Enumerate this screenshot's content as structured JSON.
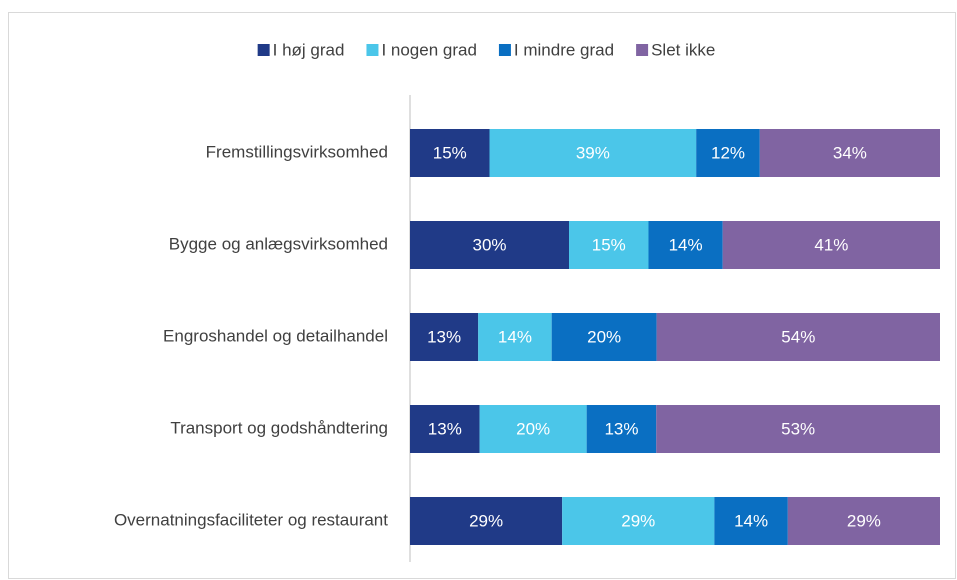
{
  "chart_data": {
    "type": "stacked-bar-horizontal",
    "categories": [
      "Fremstillingsvirksomhed",
      "Bygge og anlægsvirksomhed",
      "Engroshandel og detailhandel",
      "Transport og godshåndtering",
      "Overnatningsfaciliteter og restaurant"
    ],
    "series": [
      {
        "name": "I høj grad",
        "color": "#203a87",
        "values": [
          15,
          30,
          13,
          13,
          29
        ],
        "value_labels": [
          "15%",
          "30%",
          "13%",
          "13%",
          "29%"
        ]
      },
      {
        "name": "I nogen grad",
        "color": "#4bc6e9",
        "values": [
          39,
          15,
          14,
          20,
          29
        ],
        "value_labels": [
          "39%",
          "15%",
          "14%",
          "20%",
          "29%"
        ]
      },
      {
        "name": "I mindre grad",
        "color": "#0a6fc2",
        "values": [
          12,
          14,
          20,
          13,
          14
        ],
        "value_labels": [
          "12%",
          "14%",
          "20%",
          "13%",
          "14%"
        ]
      },
      {
        "name": "Slet ikke",
        "color": "#8064a2",
        "values": [
          34,
          41,
          54,
          53,
          29
        ],
        "value_labels": [
          "34%",
          "41%",
          "54%",
          "53%",
          "29%"
        ]
      }
    ],
    "legend": "top"
  }
}
